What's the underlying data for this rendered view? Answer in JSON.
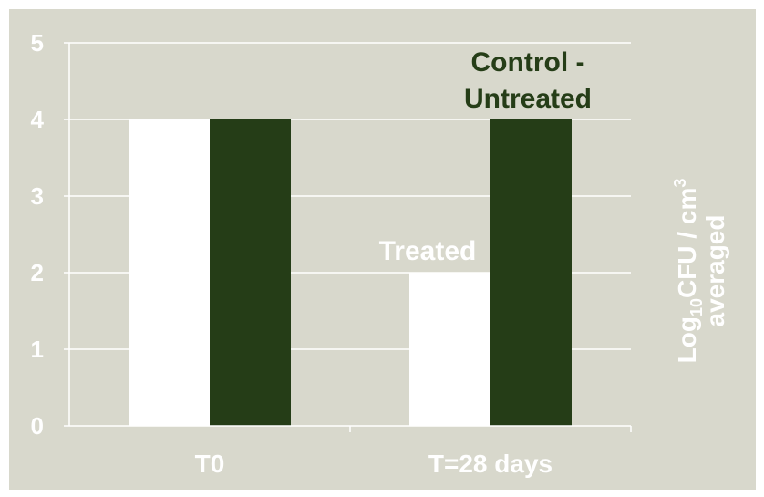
{
  "chart_data": {
    "type": "bar",
    "categories": [
      "T0",
      "T=28 days"
    ],
    "series": [
      {
        "values": [
          4,
          2
        ],
        "color": "#ffffff"
      },
      {
        "values": [
          4,
          4
        ],
        "color": "#253d17"
      }
    ],
    "ylim": [
      0,
      5
    ],
    "yticks": [
      "0",
      "1",
      "2",
      "3",
      "4",
      "5"
    ],
    "ylabel": {
      "line1_pre": "Log",
      "line1_sub": "10",
      "line1_mid": "CFU / cm",
      "line1_sup": "3",
      "line2": "averaged"
    },
    "annotations": {
      "control_line1": "Control -",
      "control_line2": "Untreated",
      "treated": "Treated"
    },
    "grid": true,
    "background": "#d8d8cc",
    "gridline_color": "#ffffff"
  }
}
